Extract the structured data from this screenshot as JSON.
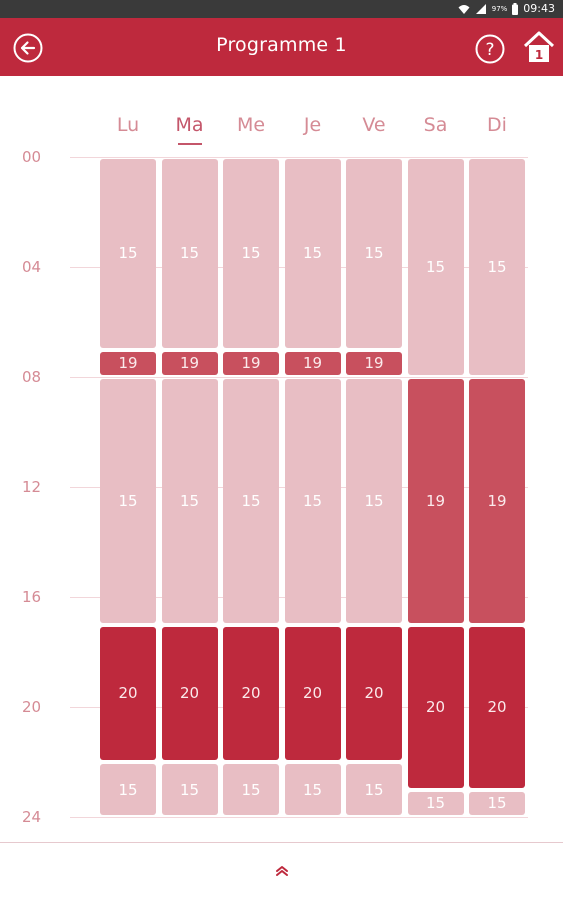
{
  "status_bar": {
    "battery_percent": "97%",
    "time": "09:43"
  },
  "header": {
    "title": "Programme 1",
    "home_badge": "1"
  },
  "colors": {
    "brand": "#be293d",
    "temp_15": "#e8bec4",
    "temp_19": "#c8505e",
    "temp_20": "#be293d",
    "label": "#d58b95"
  },
  "days": [
    {
      "label": "Lu",
      "active": false
    },
    {
      "label": "Ma",
      "active": true
    },
    {
      "label": "Me",
      "active": false
    },
    {
      "label": "Je",
      "active": false
    },
    {
      "label": "Ve",
      "active": false
    },
    {
      "label": "Sa",
      "active": false
    },
    {
      "label": "Di",
      "active": false
    }
  ],
  "time_labels": [
    "00",
    "04",
    "08",
    "12",
    "16",
    "20",
    "24"
  ],
  "schedule": [
    [
      {
        "start": 0,
        "end": 7,
        "temp": "15"
      },
      {
        "start": 7,
        "end": 8,
        "temp": "19"
      },
      {
        "start": 8,
        "end": 17,
        "temp": "15"
      },
      {
        "start": 17,
        "end": 22,
        "temp": "20"
      },
      {
        "start": 22,
        "end": 24,
        "temp": "15"
      }
    ],
    [
      {
        "start": 0,
        "end": 7,
        "temp": "15"
      },
      {
        "start": 7,
        "end": 8,
        "temp": "19"
      },
      {
        "start": 8,
        "end": 17,
        "temp": "15"
      },
      {
        "start": 17,
        "end": 22,
        "temp": "20"
      },
      {
        "start": 22,
        "end": 24,
        "temp": "15"
      }
    ],
    [
      {
        "start": 0,
        "end": 7,
        "temp": "15"
      },
      {
        "start": 7,
        "end": 8,
        "temp": "19"
      },
      {
        "start": 8,
        "end": 17,
        "temp": "15"
      },
      {
        "start": 17,
        "end": 22,
        "temp": "20"
      },
      {
        "start": 22,
        "end": 24,
        "temp": "15"
      }
    ],
    [
      {
        "start": 0,
        "end": 7,
        "temp": "15"
      },
      {
        "start": 7,
        "end": 8,
        "temp": "19"
      },
      {
        "start": 8,
        "end": 17,
        "temp": "15"
      },
      {
        "start": 17,
        "end": 22,
        "temp": "20"
      },
      {
        "start": 22,
        "end": 24,
        "temp": "15"
      }
    ],
    [
      {
        "start": 0,
        "end": 7,
        "temp": "15"
      },
      {
        "start": 7,
        "end": 8,
        "temp": "19"
      },
      {
        "start": 8,
        "end": 17,
        "temp": "15"
      },
      {
        "start": 17,
        "end": 22,
        "temp": "20"
      },
      {
        "start": 22,
        "end": 24,
        "temp": "15"
      }
    ],
    [
      {
        "start": 0,
        "end": 8,
        "temp": "15"
      },
      {
        "start": 8,
        "end": 17,
        "temp": "19"
      },
      {
        "start": 17,
        "end": 23,
        "temp": "20"
      },
      {
        "start": 23,
        "end": 24,
        "temp": "15"
      }
    ],
    [
      {
        "start": 0,
        "end": 8,
        "temp": "15"
      },
      {
        "start": 8,
        "end": 17,
        "temp": "19"
      },
      {
        "start": 17,
        "end": 23,
        "temp": "20"
      },
      {
        "start": 23,
        "end": 24,
        "temp": "15"
      }
    ]
  ],
  "icons": {
    "back": "back-arrow-icon",
    "help": "help-icon",
    "home": "home-icon",
    "expand": "chevron-up-icon"
  }
}
